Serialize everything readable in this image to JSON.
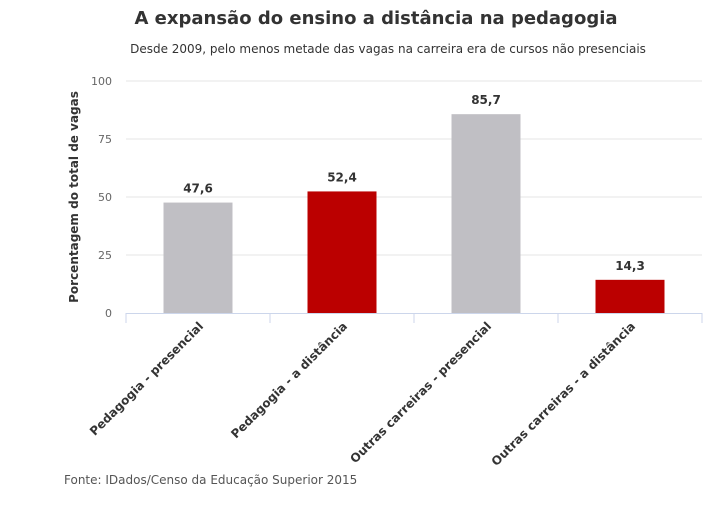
{
  "chart_data": {
    "type": "bar",
    "title": "A expansão do ensino a distância na pedagogia",
    "subtitle": "Desde 2009, pelo menos metade das vagas na carreira era de cursos não presenciais",
    "xlabel": "",
    "ylabel": "Porcentagem do total de vagas",
    "ylim": [
      0,
      100
    ],
    "yticks": [
      "0",
      "25",
      "50",
      "75",
      "100"
    ],
    "grid": true,
    "categories": [
      "Pedagogia - presencial",
      "Pedagogia - a distância",
      "Outras carreiras - presencial",
      "Outras carreiras - a distância"
    ],
    "values": [
      47.6,
      52.4,
      85.7,
      14.3
    ],
    "data_labels": [
      "47,6",
      "52,4",
      "85,7",
      "14,3"
    ],
    "colors": [
      "#c0bfc4",
      "#bb0000",
      "#c0bfc4",
      "#bb0000"
    ],
    "source": "Fonte: IDados/Censo da Educação Superior 2015"
  }
}
